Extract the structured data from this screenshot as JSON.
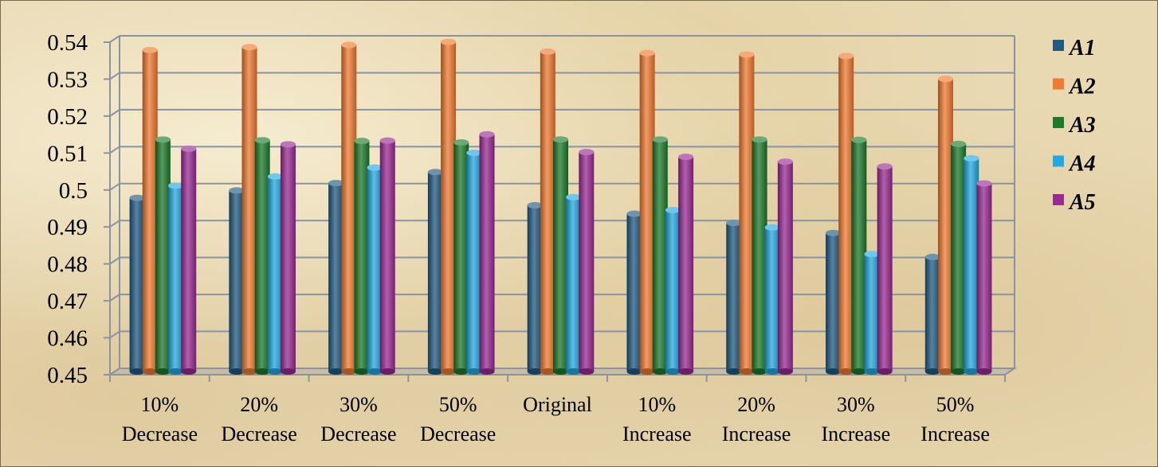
{
  "chart_data": {
    "type": "bar",
    "title": "",
    "xlabel": "",
    "ylabel": "",
    "ylim": [
      0.45,
      0.54
    ],
    "yticks": [
      "0.45",
      "0.46",
      "0.47",
      "0.48",
      "0.49",
      "0.5",
      "0.51",
      "0.52",
      "0.53",
      "0.54"
    ],
    "categories": [
      [
        "10%",
        "Decrease"
      ],
      [
        "20%",
        "Decrease"
      ],
      [
        "30%",
        "Decrease"
      ],
      [
        "50%",
        "Decrease"
      ],
      [
        "Original",
        ""
      ],
      [
        "10%",
        "Increase"
      ],
      [
        "20%",
        "Increase"
      ],
      [
        "30%",
        "Increase"
      ],
      [
        "50%",
        "Increase"
      ]
    ],
    "series": [
      {
        "name": "A1",
        "color": "#1f5a84",
        "values": [
          0.497,
          0.499,
          0.501,
          0.504,
          0.495,
          0.4927,
          0.4902,
          0.4875,
          0.481
        ]
      },
      {
        "name": "A2",
        "color": "#f07a30",
        "values": [
          0.537,
          0.5378,
          0.5384,
          0.5392,
          0.5366,
          0.5362,
          0.5358,
          0.5354,
          0.5292
        ]
      },
      {
        "name": "A3",
        "color": "#1c7a2a",
        "values": [
          0.5128,
          0.5126,
          0.5124,
          0.512,
          0.5128,
          0.5128,
          0.5128,
          0.5127,
          0.5116
        ]
      },
      {
        "name": "A4",
        "color": "#22a9e0",
        "values": [
          0.5003,
          0.5028,
          0.5052,
          0.5092,
          0.4972,
          0.4937,
          0.489,
          0.4818,
          0.5077
        ]
      },
      {
        "name": "A5",
        "color": "#9a2a94",
        "values": [
          0.5103,
          0.5115,
          0.5125,
          0.5142,
          0.5094,
          0.5081,
          0.5068,
          0.5055,
          0.5009
        ]
      }
    ],
    "legend": "right",
    "grid": true
  }
}
